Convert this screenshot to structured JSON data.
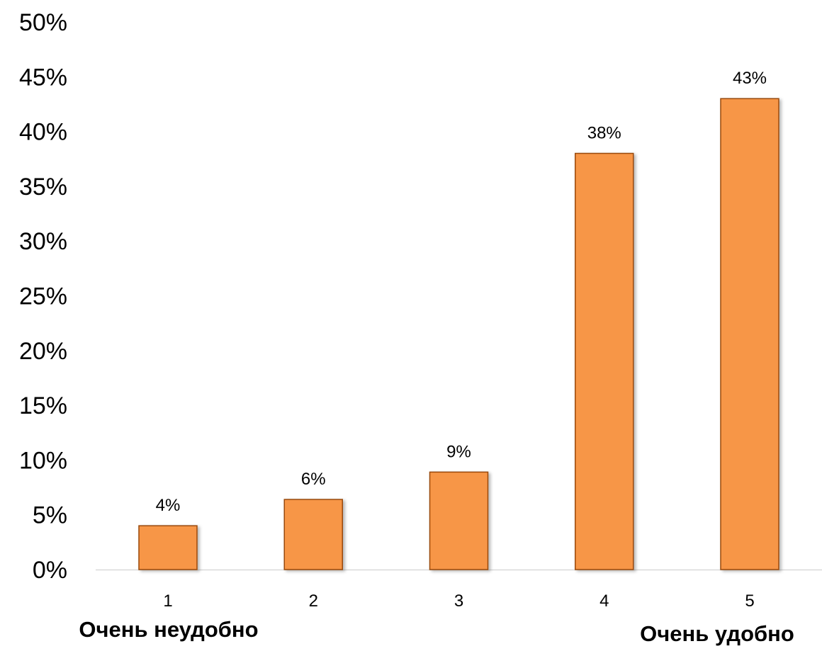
{
  "chart_data": {
    "type": "bar",
    "categories": [
      "1",
      "2",
      "3",
      "4",
      "5"
    ],
    "values": [
      4,
      6.4,
      8.9,
      38,
      43
    ],
    "data_labels": [
      "4%",
      "6%",
      "9%",
      "38%",
      "43%"
    ],
    "ylim": [
      0,
      50
    ],
    "yticks": [
      0,
      5,
      10,
      15,
      20,
      25,
      30,
      35,
      40,
      45,
      50
    ],
    "ytick_suffix": "%",
    "grid": false,
    "annotations": {
      "left": "Очень неудобно",
      "right": "Очень удобно"
    },
    "colors": {
      "bar_fill": "#f79646",
      "bar_stroke": "#9a4a0c",
      "axis": "#d9d9d9"
    }
  }
}
